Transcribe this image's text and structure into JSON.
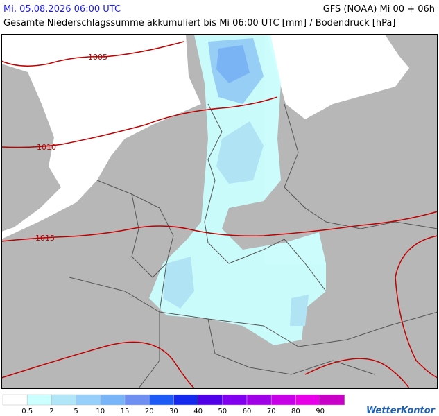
{
  "header": {
    "datetime": "Mi, 05.08.2026 06:00 UTC",
    "model": "GFS (NOAA) Mi 00 + 06h",
    "subtitle": "Gesamte Niederschlagssumme akkumuliert bis Mi 06:00 UTC [mm] / Bodendruck [hPa]"
  },
  "isobars": [
    {
      "value": 1005
    },
    {
      "value": 1010
    },
    {
      "value": 1015
    }
  ],
  "legend": {
    "colors": [
      "#ffffff",
      "#ccffff",
      "#b0e6f8",
      "#96d0fa",
      "#78b4f8",
      "#6e8ef2",
      "#1e5af5",
      "#1428ee",
      "#5000e8",
      "#8200f0",
      "#a000e8",
      "#c800e8",
      "#e800e8",
      "#c800c8"
    ],
    "labels": [
      0.5,
      2,
      5,
      10,
      15,
      20,
      30,
      40,
      50,
      60,
      70,
      80,
      90
    ]
  },
  "logo": "WetterKontor"
}
